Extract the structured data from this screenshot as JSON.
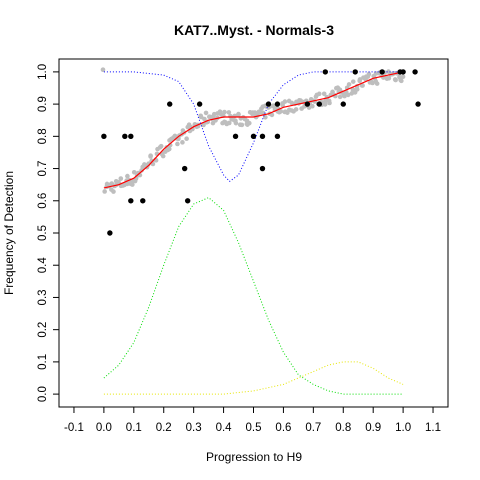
{
  "chart_data": {
    "type": "scatter",
    "title": "KAT7..Myst. - Normals-3",
    "xlabel": "Progression to H9",
    "ylabel": "Frequency of Detection",
    "xlim": [
      -0.15,
      1.15
    ],
    "ylim": [
      -0.04,
      1.04
    ],
    "xticks": [
      "-0.1",
      "0.0",
      "0.1",
      "0.2",
      "0.3",
      "0.4",
      "0.5",
      "0.6",
      "0.7",
      "0.8",
      "0.9",
      "1.0",
      "1.1"
    ],
    "yticks": [
      "0.0",
      "0.1",
      "0.2",
      "0.3",
      "0.4",
      "0.5",
      "0.6",
      "0.7",
      "0.8",
      "0.9",
      "1.0"
    ],
    "grid": false,
    "legend": "none",
    "colors": {
      "observed_points": "#000000",
      "smoothed_points": "#bebebe",
      "fit_line": "#ff0000",
      "blue_curve": "#0000ff",
      "green_curve": "#00dd00",
      "yellow_curve": "#e6e600"
    },
    "series": [
      {
        "kind": "points",
        "color": "#000000",
        "points": [
          [
            0.0,
            0.8
          ],
          [
            0.02,
            0.5
          ],
          [
            0.07,
            0.8
          ],
          [
            0.09,
            0.8
          ],
          [
            0.09,
            0.6
          ],
          [
            0.13,
            0.6
          ],
          [
            0.22,
            0.9
          ],
          [
            0.27,
            0.7
          ],
          [
            0.28,
            0.6
          ],
          [
            0.32,
            0.9
          ],
          [
            0.44,
            0.8
          ],
          [
            0.5,
            0.8
          ],
          [
            0.53,
            0.8
          ],
          [
            0.53,
            0.7
          ],
          [
            0.55,
            0.9
          ],
          [
            0.58,
            0.9
          ],
          [
            0.58,
            0.8
          ],
          [
            0.68,
            0.9
          ],
          [
            0.72,
            0.9
          ],
          [
            0.74,
            1.0
          ],
          [
            0.8,
            0.9
          ],
          [
            0.84,
            1.0
          ],
          [
            0.93,
            1.0
          ],
          [
            0.99,
            1.0
          ],
          [
            1.0,
            1.0
          ],
          [
            1.04,
            1.0
          ],
          [
            1.05,
            0.9
          ]
        ]
      },
      {
        "kind": "smoothed",
        "color": "#bebebe",
        "x": [
          0.0,
          0.05,
          0.1,
          0.15,
          0.2,
          0.25,
          0.3,
          0.35,
          0.4,
          0.45,
          0.5,
          0.55,
          0.6,
          0.65,
          0.7,
          0.75,
          0.8,
          0.85,
          0.9,
          0.95,
          1.0
        ],
        "y": [
          0.64,
          0.65,
          0.67,
          0.72,
          0.76,
          0.79,
          0.83,
          0.86,
          0.86,
          0.85,
          0.86,
          0.88,
          0.89,
          0.9,
          0.91,
          0.92,
          0.94,
          0.96,
          0.98,
          0.99,
          0.99
        ]
      },
      {
        "kind": "line",
        "color": "#ff0000",
        "style": "solid",
        "x": [
          0.0,
          0.05,
          0.1,
          0.15,
          0.2,
          0.25,
          0.3,
          0.35,
          0.4,
          0.45,
          0.5,
          0.55,
          0.6,
          0.65,
          0.7,
          0.75,
          0.8,
          0.85,
          0.9,
          0.95,
          1.0
        ],
        "y": [
          0.64,
          0.65,
          0.67,
          0.71,
          0.76,
          0.8,
          0.83,
          0.85,
          0.86,
          0.86,
          0.86,
          0.87,
          0.89,
          0.9,
          0.91,
          0.92,
          0.94,
          0.96,
          0.98,
          0.99,
          1.0
        ]
      },
      {
        "kind": "line",
        "color": "#0000ff",
        "style": "dotted",
        "x": [
          0.0,
          0.1,
          0.2,
          0.25,
          0.3,
          0.35,
          0.4,
          0.42,
          0.45,
          0.5,
          0.55,
          0.6,
          0.65,
          0.7,
          0.8,
          0.9,
          1.0
        ],
        "y": [
          1.0,
          1.0,
          0.99,
          0.97,
          0.9,
          0.77,
          0.68,
          0.66,
          0.68,
          0.78,
          0.9,
          0.96,
          0.99,
          1.0,
          1.0,
          1.0,
          1.0
        ]
      },
      {
        "kind": "line",
        "color": "#00dd00",
        "style": "dotted",
        "x": [
          0.0,
          0.05,
          0.1,
          0.15,
          0.2,
          0.25,
          0.3,
          0.35,
          0.4,
          0.45,
          0.5,
          0.55,
          0.6,
          0.65,
          0.7,
          0.75,
          0.8,
          0.9,
          1.0
        ],
        "y": [
          0.05,
          0.09,
          0.16,
          0.27,
          0.4,
          0.52,
          0.59,
          0.61,
          0.57,
          0.47,
          0.35,
          0.23,
          0.13,
          0.06,
          0.03,
          0.01,
          0.0,
          0.0,
          0.0
        ]
      },
      {
        "kind": "line",
        "color": "#e6e600",
        "style": "dotted",
        "x": [
          0.0,
          0.1,
          0.2,
          0.3,
          0.4,
          0.5,
          0.6,
          0.65,
          0.7,
          0.75,
          0.8,
          0.85,
          0.9,
          0.95,
          1.0
        ],
        "y": [
          0.0,
          0.0,
          0.0,
          0.0,
          0.0,
          0.01,
          0.03,
          0.05,
          0.07,
          0.09,
          0.1,
          0.1,
          0.08,
          0.05,
          0.03
        ]
      }
    ]
  }
}
